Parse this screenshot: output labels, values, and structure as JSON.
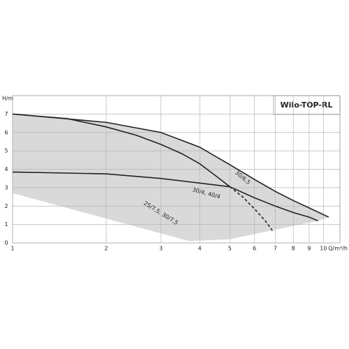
{
  "chart_data": {
    "type": "line",
    "title": "Wilo-TOP-RL",
    "x_label": "Q/m³/h",
    "y_label": "H/m",
    "xlim": [
      1,
      11.3
    ],
    "ylim": [
      0,
      8
    ],
    "x_log": true,
    "grid": true,
    "xticks": [
      1,
      2,
      3,
      4,
      5,
      6,
      7,
      8,
      9,
      10
    ],
    "yticks": [
      0,
      1,
      2,
      3,
      4,
      5,
      6,
      7
    ],
    "operating_range": {
      "color": "#d9d9d9",
      "x": [
        1,
        3.7,
        5,
        9.6,
        10.4,
        9,
        8,
        7,
        6,
        5,
        4,
        3,
        2,
        1
      ],
      "values": [
        2.7,
        0.1,
        0.2,
        1.2,
        1.4,
        1.9,
        2.3,
        2.8,
        3.45,
        4.25,
        5.2,
        6.0,
        6.55,
        7
      ]
    },
    "series": [
      {
        "name": "25/7,5, 30/7,5",
        "color": "#222222",
        "x": [
          1,
          1.5,
          2,
          2.5,
          3,
          3.5,
          4,
          4.5,
          5,
          6,
          7,
          8,
          9,
          9.6
        ],
        "values": [
          7,
          6.75,
          6.3,
          5.85,
          5.35,
          4.85,
          4.3,
          3.65,
          3.05,
          2.45,
          2.0,
          1.65,
          1.4,
          1.2
        ]
      },
      {
        "name": "30/6,5",
        "color": "#222222",
        "x": [
          1,
          2,
          3,
          4,
          5,
          6,
          7,
          8,
          9,
          10.4
        ],
        "values": [
          7,
          6.55,
          6.0,
          5.2,
          4.25,
          3.45,
          2.8,
          2.3,
          1.9,
          1.4
        ]
      },
      {
        "name": "30/4, 40/4",
        "color": "#222222",
        "dashed_from": 5,
        "x": [
          1,
          2,
          3,
          4,
          5,
          5.5,
          6,
          6.5,
          6.9
        ],
        "values": [
          3.85,
          3.75,
          3.5,
          3.25,
          3.05,
          2.5,
          1.85,
          1.2,
          0.6
        ]
      }
    ]
  }
}
